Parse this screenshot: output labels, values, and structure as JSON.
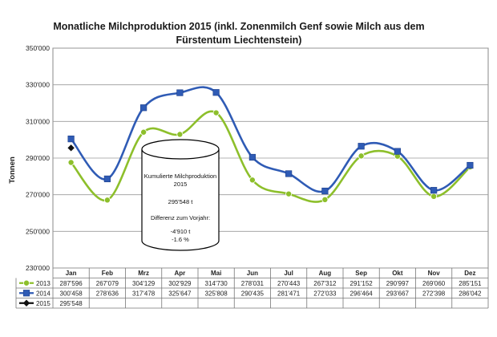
{
  "chart_data": {
    "type": "line",
    "title_line1": "Monatliche Milchproduktion 2015 (inkl. Zonenmilch Genf sowie Milch aus dem",
    "title_line2": "Fürstentum Liechtenstein)",
    "ylabel": "Tonnen",
    "ylim": [
      230000,
      350000
    ],
    "yticks": [
      "230'000",
      "250'000",
      "270'000",
      "290'000",
      "310'000",
      "330'000",
      "350'000"
    ],
    "grid": true,
    "categories": [
      "Jan",
      "Feb",
      "Mrz",
      "Apr",
      "Mai",
      "Jun",
      "Jul",
      "Aug",
      "Sep",
      "Okt",
      "Nov",
      "Dez"
    ],
    "series": [
      {
        "name": "2013",
        "color": "#8dbf2b",
        "marker": "circle",
        "values": [
          287596,
          267079,
          304129,
          302929,
          314730,
          278031,
          270443,
          267312,
          291152,
          290997,
          269060,
          285151
        ],
        "labels": [
          "287'596",
          "267'079",
          "304'129",
          "302'929",
          "314'730",
          "278'031",
          "270'443",
          "267'312",
          "291'152",
          "290'997",
          "269'060",
          "285'151"
        ]
      },
      {
        "name": "2014",
        "color": "#2f5bb5",
        "marker": "square",
        "values": [
          300458,
          278636,
          317478,
          325647,
          325808,
          290435,
          281471,
          272033,
          296464,
          293667,
          272398,
          286042
        ],
        "labels": [
          "300'458",
          "278'636",
          "317'478",
          "325'647",
          "325'808",
          "290'435",
          "281'471",
          "272'033",
          "296'464",
          "293'667",
          "272'398",
          "286'042"
        ]
      },
      {
        "name": "2015",
        "color": "#111111",
        "marker": "diamond",
        "values": [
          295548,
          null,
          null,
          null,
          null,
          null,
          null,
          null,
          null,
          null,
          null,
          null
        ],
        "labels": [
          "295'548",
          "",
          "",
          "",
          "",
          "",
          "",
          "",
          "",
          "",
          "",
          ""
        ]
      }
    ],
    "callout": {
      "line1": "Kumulierte Milchproduktion",
      "line2": "2015",
      "line3": "295'548 t",
      "line4": "Differenz zum Vorjahr:",
      "line5": "-4'910 t",
      "line6": "-1.6 %"
    }
  }
}
